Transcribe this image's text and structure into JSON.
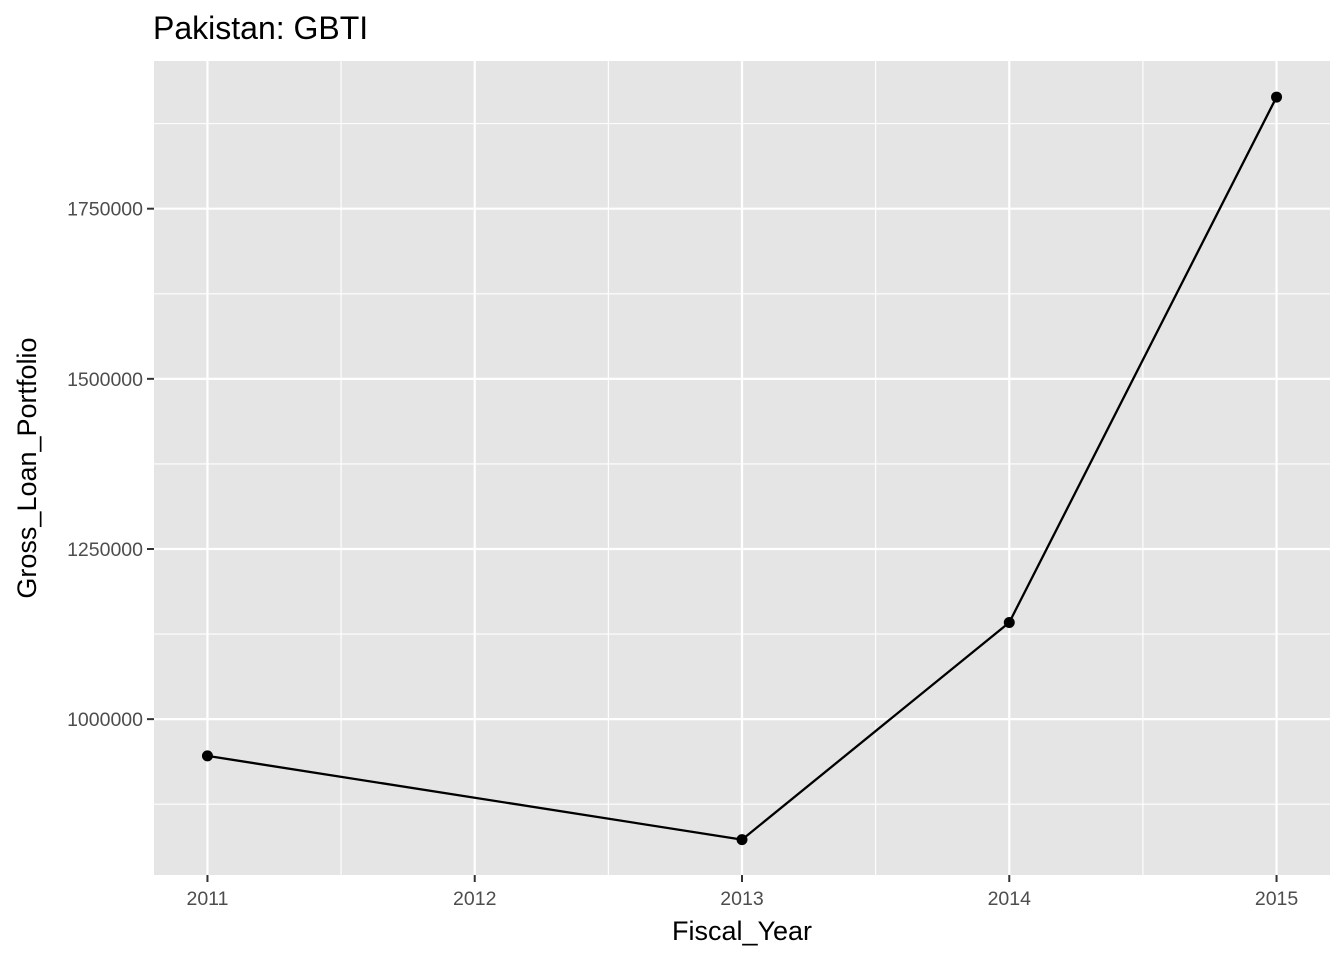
{
  "chart_data": {
    "type": "line",
    "title": "Pakistan:  GBTI",
    "xlabel": "Fiscal_Year",
    "ylabel": "Gross_Loan_Portfolio",
    "x": [
      2011,
      2013,
      2014,
      2015
    ],
    "y": [
      946000,
      823000,
      1142000,
      1914000
    ],
    "xlim": [
      2010.8,
      2015.2
    ],
    "ylim": [
      771000,
      1967000
    ],
    "x_ticks": [
      "2011",
      "2012",
      "2013",
      "2014",
      "2015"
    ],
    "y_ticks": [
      "1000000",
      "1250000",
      "1500000",
      "1750000"
    ],
    "grid": true,
    "legend": "none",
    "colors": {
      "panel_background": "#e5e5e5",
      "grid": "#ffffff",
      "line": "#000000",
      "point": "#000000",
      "tick_text": "#4d4d4d"
    }
  }
}
